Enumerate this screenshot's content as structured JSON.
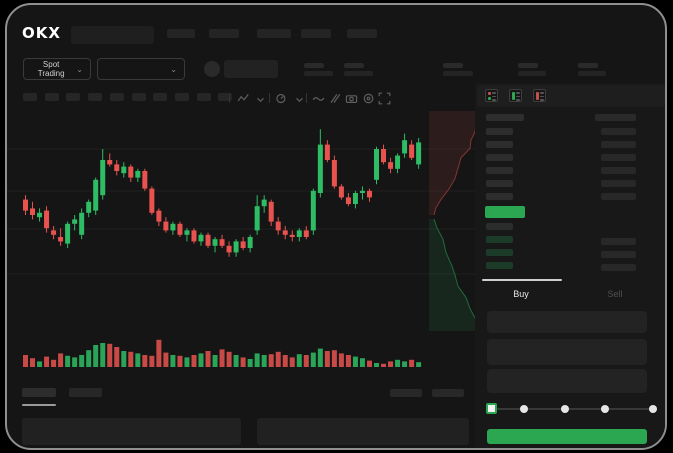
{
  "brand": "OKX",
  "market_selector": {
    "label": "Spot Trading",
    "chevron_glyph": "⌄"
  },
  "pair_selector": {
    "chevron_glyph": "⌄"
  },
  "chart_toolbar_icons": [
    "candle-style-icon",
    "style-chevron-icon",
    "indicators-icon",
    "indicators-chevron-icon",
    "line-tool-icon",
    "draw-tool-icon",
    "camera-icon",
    "target-icon",
    "fullscreen-icon"
  ],
  "orderbook": {
    "toggle_icons": [
      "book-both-sides-icon",
      "book-bids-only-icon",
      "book-asks-only-icon"
    ],
    "ask_rows": 6,
    "bid_rows": 4,
    "bid_right_rows": 3,
    "price_highlight_color": "#2aa750"
  },
  "trade_panel": {
    "tabs": [
      {
        "label": "Buy",
        "active": true
      },
      {
        "label": "Sell",
        "active": false
      }
    ],
    "input_rows": 3,
    "slider": {
      "stops": 5,
      "value_percent": 0
    },
    "submit_color": "#2aa750"
  },
  "colors": {
    "up": "#2ebd64",
    "down": "#e85350",
    "accent_green": "#2aa750"
  },
  "chart_data": [
    {
      "type": "candlestick",
      "title": "",
      "note": "Skeleton trading UI: no axis tick labels or numeric price labels are rendered; OHLC and volume estimated from pixels on a normalized 0-100 scale.",
      "price_scale": [
        0,
        100
      ],
      "grid": true,
      "candles": [
        [
          62,
          64,
          55,
          57
        ],
        [
          58,
          61,
          53,
          55
        ],
        [
          54,
          58,
          52,
          56
        ],
        [
          57,
          59,
          47,
          49
        ],
        [
          48,
          50,
          44,
          46
        ],
        [
          45,
          49,
          41,
          43
        ],
        [
          42,
          52,
          40,
          51
        ],
        [
          51,
          55,
          48,
          53
        ],
        [
          46,
          58,
          44,
          56
        ],
        [
          56,
          62,
          54,
          61
        ],
        [
          57,
          72,
          55,
          71
        ],
        [
          64,
          85,
          62,
          80
        ],
        [
          80,
          83,
          77,
          78
        ],
        [
          78,
          80,
          73,
          75
        ],
        [
          74,
          79,
          72,
          77
        ],
        [
          77,
          78,
          70,
          72
        ],
        [
          72,
          76,
          70,
          75
        ],
        [
          75,
          76,
          66,
          67
        ],
        [
          67,
          68,
          55,
          56
        ],
        [
          57,
          58,
          50,
          52
        ],
        [
          52,
          54,
          47,
          48
        ],
        [
          48,
          52,
          46,
          51
        ],
        [
          51,
          52,
          45,
          46
        ],
        [
          46,
          49,
          43,
          48
        ],
        [
          48,
          49,
          42,
          43
        ],
        [
          43,
          47,
          41,
          46
        ],
        [
          46,
          47,
          40,
          41
        ],
        [
          41,
          45,
          38,
          44
        ],
        [
          44,
          46,
          40,
          41
        ],
        [
          41,
          43,
          36,
          38
        ],
        [
          38,
          44,
          36,
          43
        ],
        [
          43,
          45,
          39,
          40
        ],
        [
          40,
          46,
          38,
          45
        ],
        [
          48,
          64,
          46,
          59
        ],
        [
          59,
          64,
          56,
          62
        ],
        [
          61,
          62,
          50,
          52
        ],
        [
          52,
          54,
          46,
          48
        ],
        [
          48,
          50,
          44,
          46
        ],
        [
          46,
          48,
          43,
          45
        ],
        [
          45,
          49,
          43,
          48
        ],
        [
          48,
          50,
          44,
          45
        ],
        [
          48,
          67,
          46,
          66
        ],
        [
          65,
          94,
          63,
          87
        ],
        [
          87,
          89,
          79,
          80
        ],
        [
          80,
          82,
          67,
          68
        ],
        [
          68,
          69,
          62,
          63
        ],
        [
          63,
          65,
          59,
          60
        ],
        [
          60,
          66,
          58,
          65
        ],
        [
          65,
          68,
          62,
          66
        ],
        [
          66,
          67,
          61,
          63
        ],
        [
          71,
          86,
          69,
          85
        ],
        [
          85,
          87,
          78,
          79
        ],
        [
          79,
          81,
          74,
          76
        ],
        [
          76,
          83,
          74,
          82
        ],
        [
          83,
          92,
          81,
          89
        ],
        [
          87,
          89,
          80,
          81
        ],
        [
          78,
          90,
          76,
          88
        ]
      ],
      "volume": [
        30,
        22,
        14,
        26,
        18,
        34,
        28,
        24,
        30,
        42,
        55,
        60,
        58,
        50,
        40,
        38,
        34,
        30,
        28,
        68,
        36,
        30,
        28,
        24,
        30,
        34,
        40,
        30,
        44,
        38,
        30,
        24,
        20,
        34,
        30,
        32,
        38,
        30,
        24,
        32,
        30,
        36,
        46,
        40,
        42,
        34,
        30,
        26,
        22,
        16,
        10,
        8,
        14,
        18,
        14,
        18,
        12
      ]
    },
    {
      "type": "area",
      "subtype": "depth",
      "orientation": "vertical",
      "note": "Vertical market-depth silhouette between chart and order book; asks (red) on top, bids (green) below.",
      "asks_line": [
        [
          0,
          1.0
        ],
        [
          0.06,
          0.97
        ],
        [
          0.12,
          0.92
        ],
        [
          0.2,
          0.9
        ],
        [
          0.28,
          0.82
        ],
        [
          0.36,
          0.8
        ],
        [
          0.45,
          0.62
        ],
        [
          0.55,
          0.56
        ],
        [
          0.65,
          0.5
        ],
        [
          0.75,
          0.38
        ],
        [
          0.85,
          0.22
        ],
        [
          0.93,
          0.12
        ],
        [
          1,
          0.08
        ]
      ],
      "bids_line": [
        [
          0,
          0.08
        ],
        [
          0.08,
          0.14
        ],
        [
          0.18,
          0.26
        ],
        [
          0.3,
          0.32
        ],
        [
          0.42,
          0.44
        ],
        [
          0.5,
          0.5
        ],
        [
          0.6,
          0.56
        ],
        [
          0.7,
          0.72
        ],
        [
          0.8,
          0.8
        ],
        [
          0.9,
          0.92
        ],
        [
          1,
          1.0
        ]
      ],
      "ask_color": "#d64f4a",
      "bid_color": "#2baa5a"
    }
  ]
}
